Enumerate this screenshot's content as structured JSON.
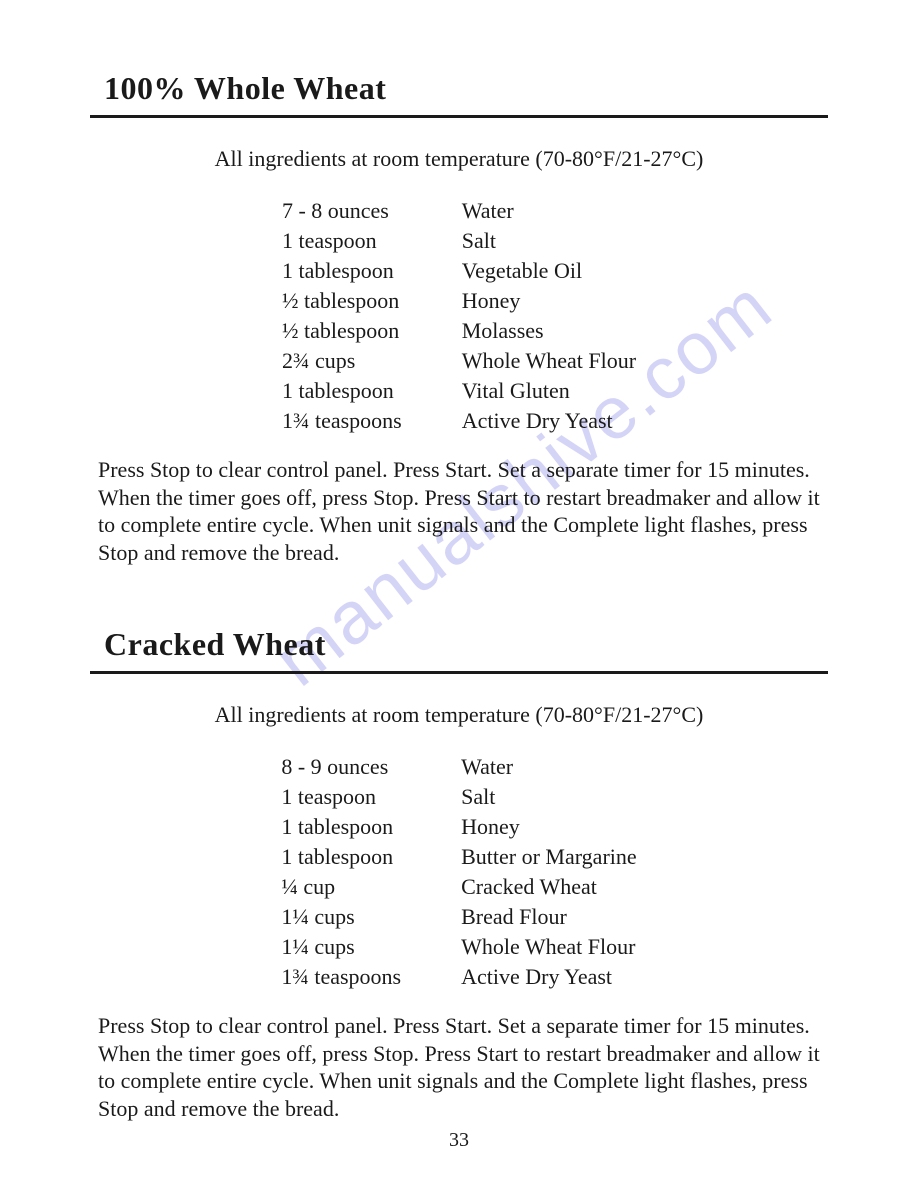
{
  "page_number": "33",
  "watermark_text": "manualshive.com",
  "watermark_color": "#8787ea",
  "watermark_opacity": 0.35,
  "text_color": "#1a1a1a",
  "background_color": "#ffffff",
  "recipe1": {
    "title": "100% Whole Wheat",
    "note": "All ingredients at room temperature (70-80°F/21-27°C)",
    "ingredients": [
      {
        "amount": "7 - 8 ounces",
        "name": "Water"
      },
      {
        "amount": "1 teaspoon",
        "name": "Salt"
      },
      {
        "amount": "1 tablespoon",
        "name": "Vegetable Oil"
      },
      {
        "amount": "½ tablespoon",
        "name": "Honey"
      },
      {
        "amount": "½ tablespoon",
        "name": "Molasses"
      },
      {
        "amount": "2¾ cups",
        "name": "Whole Wheat Flour"
      },
      {
        "amount": "1 tablespoon",
        "name": "Vital Gluten"
      },
      {
        "amount": "1¾ teaspoons",
        "name": "Active Dry Yeast"
      }
    ],
    "instructions": "Press Stop to clear control panel. Press Start. Set a separate timer for 15 minutes. When the timer goes off, press Stop. Press Start to restart breadmaker and allow it to complete entire cycle. When unit signals and the Complete light flashes, press Stop and remove the bread."
  },
  "recipe2": {
    "title": "Cracked Wheat",
    "note": "All ingredients at room temperature (70-80°F/21-27°C)",
    "ingredients": [
      {
        "amount": "8 - 9 ounces",
        "name": "Water"
      },
      {
        "amount": "1 teaspoon",
        "name": "Salt"
      },
      {
        "amount": "1 tablespoon",
        "name": "Honey"
      },
      {
        "amount": "1 tablespoon",
        "name": "Butter or Margarine"
      },
      {
        "amount": "¼ cup",
        "name": "Cracked Wheat"
      },
      {
        "amount": "1¼ cups",
        "name": "Bread Flour"
      },
      {
        "amount": "1¼ cups",
        "name": "Whole Wheat Flour"
      },
      {
        "amount": "1¾ teaspoons",
        "name": "Active Dry Yeast"
      }
    ],
    "instructions": "Press Stop to clear control panel. Press Start. Set a separate timer for 15 minutes. When the timer goes off, press Stop. Press Start to restart breadmaker and allow it to complete entire cycle. When unit signals and the Complete light flashes, press Stop and remove the bread."
  }
}
